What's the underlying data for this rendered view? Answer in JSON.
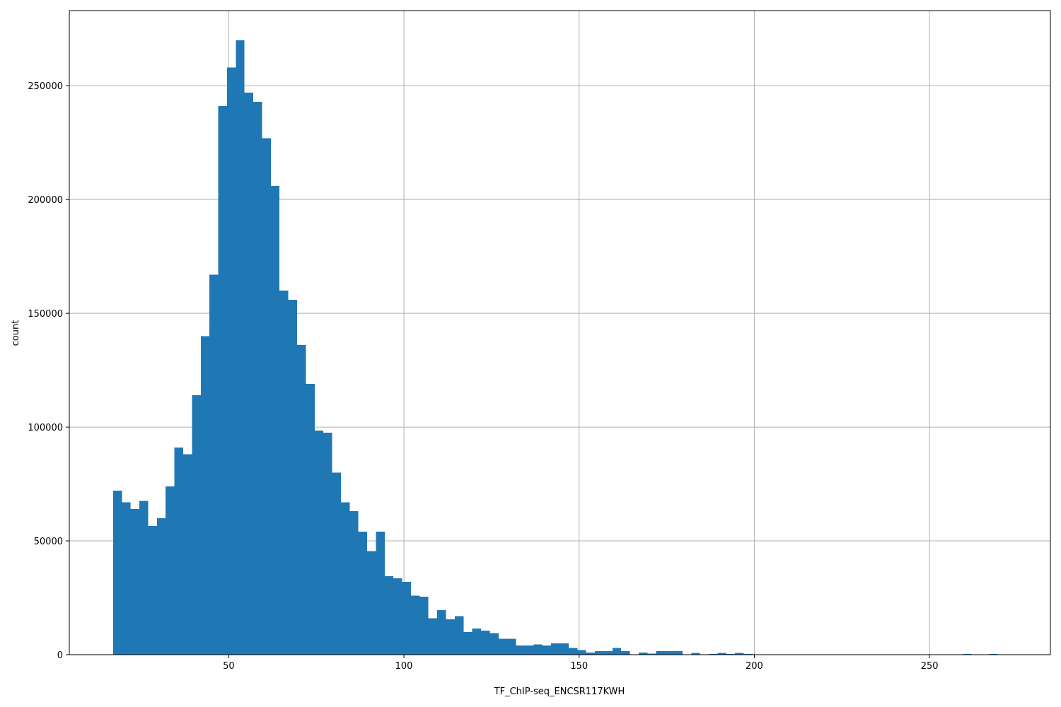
{
  "chart_data": {
    "type": "bar",
    "title": "",
    "xlabel": "TF_ChIP-seq_ENCSR117KWH",
    "ylabel": "count",
    "xlim": [
      4.5,
      284.5
    ],
    "ylim": [
      0,
      283000
    ],
    "grid": true,
    "bar_color": "#1f77b4",
    "bin_start": 17,
    "bin_width": 2.5,
    "x_ticks": [
      50,
      100,
      150,
      200,
      250
    ],
    "x_tick_labels": [
      "50",
      "100",
      "150",
      "200",
      "250"
    ],
    "y_ticks": [
      0,
      50000,
      100000,
      150000,
      200000,
      250000
    ],
    "y_tick_labels": [
      "0",
      "50000",
      "100000",
      "150000",
      "200000",
      "250000"
    ],
    "values": [
      72000,
      67000,
      64000,
      67500,
      56500,
      60000,
      74000,
      91000,
      88000,
      114000,
      140000,
      167000,
      241000,
      258000,
      270000,
      247000,
      243000,
      227000,
      206000,
      160000,
      156000,
      136000,
      119000,
      98500,
      97500,
      80000,
      67000,
      63000,
      54000,
      45500,
      54000,
      34500,
      33500,
      32000,
      26000,
      25500,
      16000,
      19500,
      15500,
      17000,
      10000,
      11500,
      10500,
      9500,
      7000,
      7000,
      4000,
      4000,
      4500,
      4000,
      5000,
      5000,
      3000,
      2000,
      1000,
      1500,
      1500,
      3000,
      1500,
      200,
      1000,
      500,
      1500,
      1500,
      1500,
      200,
      800,
      200,
      300,
      800,
      300,
      800,
      300,
      100,
      100,
      100,
      100,
      100,
      100,
      100,
      100,
      100,
      100,
      100,
      100,
      100,
      100,
      100,
      100,
      100,
      100,
      100,
      100,
      100,
      100,
      100,
      100,
      300,
      100,
      100,
      300,
      100,
      100,
      100
    ]
  }
}
